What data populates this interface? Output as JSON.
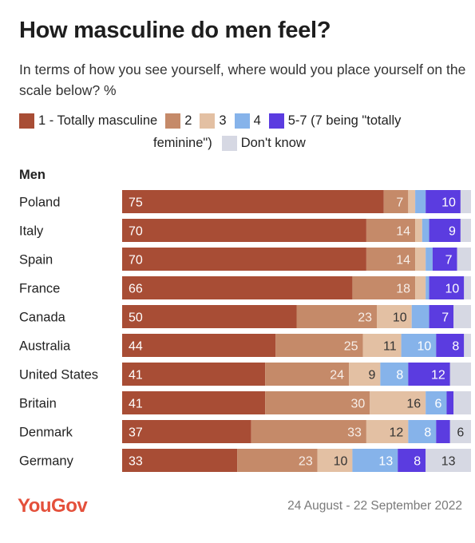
{
  "title": "How masculine do men feel?",
  "subtitle": "In terms of how you see yourself, where would you place yourself on the scale below? %",
  "legend": {
    "items": [
      {
        "label": "1 - Totally masculine",
        "color": "#a84d35"
      },
      {
        "label": "2",
        "color": "#c58a69"
      },
      {
        "label": "3",
        "color": "#e3c0a3"
      },
      {
        "label": "4",
        "color": "#86b3ea"
      },
      {
        "label": "5-7 (7 being \"totally",
        "label_cont": "feminine\")",
        "color": "#5b3ce0"
      },
      {
        "label": "Don't know",
        "color": "#d6d8e3"
      }
    ]
  },
  "section_label": "Men",
  "chart_data": {
    "type": "bar",
    "orientation": "horizontal",
    "stacked": true,
    "categories": [
      "Poland",
      "Italy",
      "Spain",
      "France",
      "Canada",
      "Australia",
      "United States",
      "Britain",
      "Denmark",
      "Germany"
    ],
    "series": [
      {
        "name": "1 - Totally masculine",
        "color": "#a84d35",
        "values": [
          75,
          70,
          70,
          66,
          50,
          44,
          41,
          41,
          37,
          33
        ],
        "labels": [
          "75",
          "70",
          "70",
          "66",
          "50",
          "44",
          "41",
          "41",
          "37",
          "33"
        ]
      },
      {
        "name": "2",
        "color": "#c58a69",
        "values": [
          7,
          14,
          14,
          18,
          23,
          25,
          24,
          30,
          33,
          23
        ],
        "labels": [
          "7",
          "14",
          "14",
          "18",
          "23",
          "25",
          "24",
          "30",
          "33",
          "23"
        ]
      },
      {
        "name": "3",
        "color": "#e3c0a3",
        "values": [
          2,
          2,
          3,
          3,
          10,
          11,
          9,
          16,
          12,
          10
        ],
        "labels": [
          "",
          "",
          "",
          "",
          "10",
          "11",
          "9",
          "16",
          "12",
          "10"
        ]
      },
      {
        "name": "4",
        "color": "#86b3ea",
        "values": [
          3,
          2,
          2,
          1,
          5,
          10,
          8,
          6,
          8,
          13
        ],
        "labels": [
          "",
          "",
          "",
          "",
          "",
          "10",
          "8",
          "6",
          "8",
          "13"
        ]
      },
      {
        "name": "5-7 (7 being \"totally feminine\")",
        "color": "#5b3ce0",
        "values": [
          10,
          9,
          7,
          10,
          7,
          8,
          12,
          2,
          4,
          8
        ],
        "labels": [
          "10",
          "9",
          "7",
          "10",
          "7",
          "8",
          "12",
          "",
          "",
          "8"
        ]
      },
      {
        "name": "Don't know",
        "color": "#d6d8e3",
        "values": [
          3,
          3,
          4,
          2,
          5,
          2,
          6,
          5,
          6,
          13
        ],
        "labels": [
          "",
          "",
          "",
          "",
          "",
          "",
          "",
          "",
          "6",
          "13"
        ]
      }
    ],
    "xlim": [
      0,
      100
    ]
  },
  "footer": {
    "logo": "YouGov",
    "date": "24 August - 22 September 2022"
  }
}
